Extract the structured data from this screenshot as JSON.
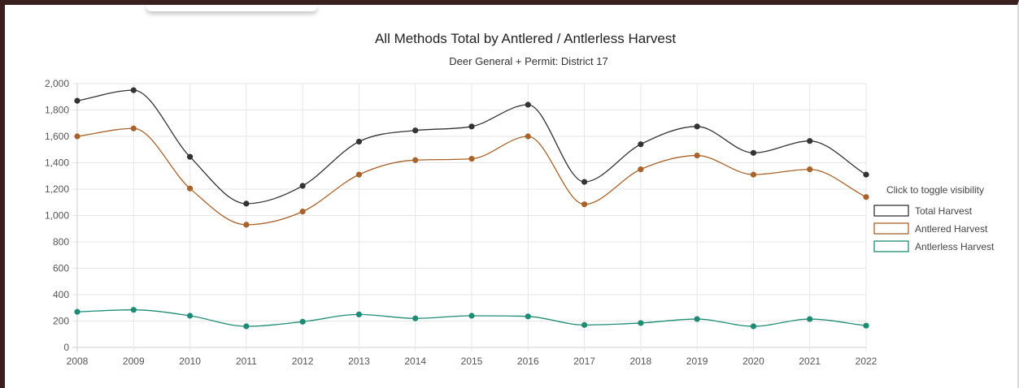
{
  "chart_data": {
    "type": "line",
    "title": "All Methods Total by Antlered / Antlerless Harvest",
    "subtitle": "Deer General + Permit: District 17",
    "categories": [
      "2008",
      "2009",
      "2010",
      "2011",
      "2012",
      "2013",
      "2014",
      "2015",
      "2016",
      "2017",
      "2018",
      "2019",
      "2020",
      "2021",
      "2022"
    ],
    "y_ticks": [
      "0",
      "200",
      "400",
      "600",
      "800",
      "1,000",
      "1,200",
      "1,400",
      "1,600",
      "1,800",
      "2,000"
    ],
    "ylim": [
      0,
      2000
    ],
    "grid": true,
    "legend_title": "Click to toggle visibility",
    "legend_position": "right",
    "series": [
      {
        "name": "Total Harvest",
        "color": "#333333",
        "values": [
          1870,
          1950,
          1445,
          1090,
          1225,
          1560,
          1645,
          1675,
          1840,
          1255,
          1540,
          1675,
          1475,
          1565,
          1310
        ]
      },
      {
        "name": "Antlered Harvest",
        "color": "#a8622a",
        "values": [
          1600,
          1660,
          1205,
          930,
          1030,
          1310,
          1420,
          1430,
          1600,
          1085,
          1350,
          1455,
          1310,
          1350,
          1140
        ]
      },
      {
        "name": "Antlerless Harvest",
        "color": "#1e8c74",
        "values": [
          270,
          285,
          240,
          160,
          195,
          250,
          220,
          240,
          235,
          170,
          185,
          215,
          160,
          215,
          165
        ]
      }
    ]
  }
}
